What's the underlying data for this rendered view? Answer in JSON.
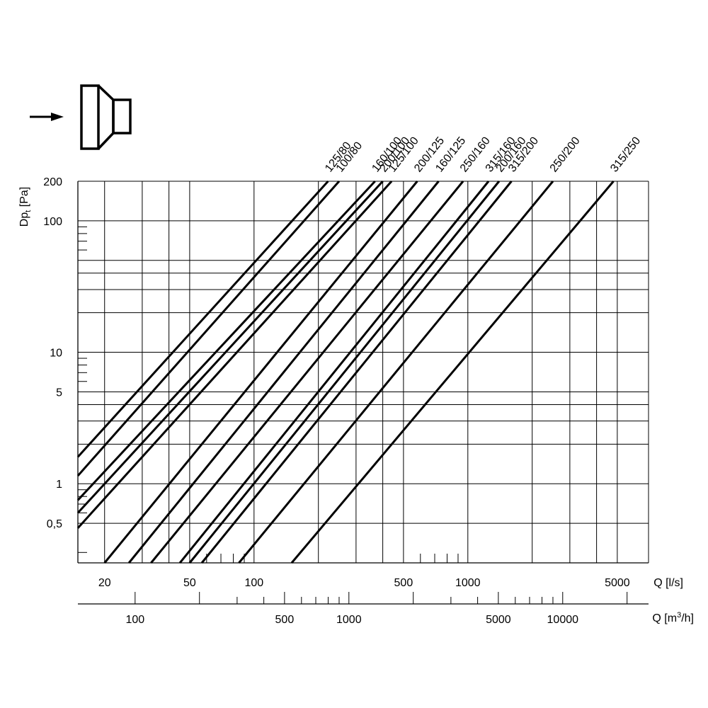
{
  "chart_data": {
    "type": "line",
    "title": "",
    "y_axis": {
      "label_main": "Dp",
      "label_sub": "t",
      "label_unit": " [Pa]",
      "scale": "log",
      "range": [
        0.25,
        200
      ],
      "tick_labels": [
        {
          "value": 200,
          "label": "200"
        },
        {
          "value": 100,
          "label": "100"
        },
        {
          "value": 10,
          "label": "10"
        },
        {
          "value": 5,
          "label": "5"
        },
        {
          "value": 1,
          "label": "1"
        },
        {
          "value": 0.5,
          "label": "0,5"
        }
      ],
      "major_grid": [
        200,
        100,
        50,
        40,
        30,
        20,
        10,
        5,
        4,
        3,
        2,
        1,
        0.5
      ],
      "minor_ticks": [
        90,
        80,
        70,
        60,
        9,
        8,
        7,
        6,
        0.9,
        0.8,
        0.7,
        0.6,
        0.3
      ]
    },
    "x_axis_ls": {
      "label": "Q [l/s]",
      "scale": "log",
      "range": [
        15,
        7000
      ],
      "tick_labels": [
        {
          "value": 20,
          "label": "20"
        },
        {
          "value": 50,
          "label": "50"
        },
        {
          "value": 100,
          "label": "100"
        },
        {
          "value": 500,
          "label": "500"
        },
        {
          "value": 1000,
          "label": "1000"
        },
        {
          "value": 5000,
          "label": "5000"
        }
      ],
      "grid": [
        20,
        30,
        40,
        50,
        100,
        200,
        300,
        400,
        500,
        1000,
        2000,
        3000,
        4000,
        5000,
        7000
      ],
      "minor_ticks": [
        60,
        70,
        80,
        90,
        600,
        700,
        800,
        900
      ]
    },
    "x_axis_m3h": {
      "label_main": "Q [m",
      "label_sup": "3",
      "label_end": "/h]",
      "scale": "log",
      "range": [
        54,
        25200
      ],
      "tick_labels": [
        {
          "value": 100,
          "label": "100"
        },
        {
          "value": 500,
          "label": "500"
        },
        {
          "value": 1000,
          "label": "1000"
        },
        {
          "value": 5000,
          "label": "5000"
        },
        {
          "value": 10000,
          "label": "10000"
        }
      ],
      "major_ticks": [
        100,
        200,
        500,
        1000,
        2000,
        5000,
        10000,
        20000
      ],
      "minor_ticks": [
        300,
        400,
        600,
        700,
        800,
        900,
        3000,
        4000,
        6000,
        7000,
        8000,
        9000
      ]
    },
    "series": [
      {
        "name": "125/80",
        "points": [
          [
            15,
            1.6
          ],
          [
            222,
            200
          ]
        ]
      },
      {
        "name": "100/80",
        "points": [
          [
            15,
            1.15
          ],
          [
            250,
            200
          ]
        ]
      },
      {
        "name": "160/100",
        "points": [
          [
            15,
            0.75
          ],
          [
            368,
            200
          ]
        ]
      },
      {
        "name": "200/100",
        "points": [
          [
            15,
            0.6
          ],
          [
            400,
            200
          ]
        ]
      },
      {
        "name": "125/100",
        "points": [
          [
            15,
            0.46
          ],
          [
            440,
            200
          ]
        ]
      },
      {
        "name": "200/125",
        "points": [
          [
            20,
            0.25
          ],
          [
            580,
            200
          ]
        ]
      },
      {
        "name": "160/125",
        "points": [
          [
            26,
            0.25
          ],
          [
            730,
            200
          ]
        ]
      },
      {
        "name": "250/160",
        "points": [
          [
            33,
            0.25
          ],
          [
            950,
            200
          ]
        ]
      },
      {
        "name": "315/160",
        "points": [
          [
            45,
            0.25
          ],
          [
            1250,
            200
          ]
        ]
      },
      {
        "name": "200/160",
        "points": [
          [
            50,
            0.25
          ],
          [
            1400,
            200
          ]
        ]
      },
      {
        "name": "315/200",
        "points": [
          [
            57,
            0.25
          ],
          [
            1600,
            200
          ]
        ]
      },
      {
        "name": "250/200",
        "points": [
          [
            85,
            0.25
          ],
          [
            2500,
            200
          ]
        ]
      },
      {
        "name": "315/250",
        "points": [
          [
            150,
            0.25
          ],
          [
            4800,
            200
          ]
        ]
      }
    ],
    "grid": true,
    "legend": "none"
  },
  "icon": {
    "name": "duct-reducer-icon",
    "arrow": "flow-direction-arrow"
  }
}
